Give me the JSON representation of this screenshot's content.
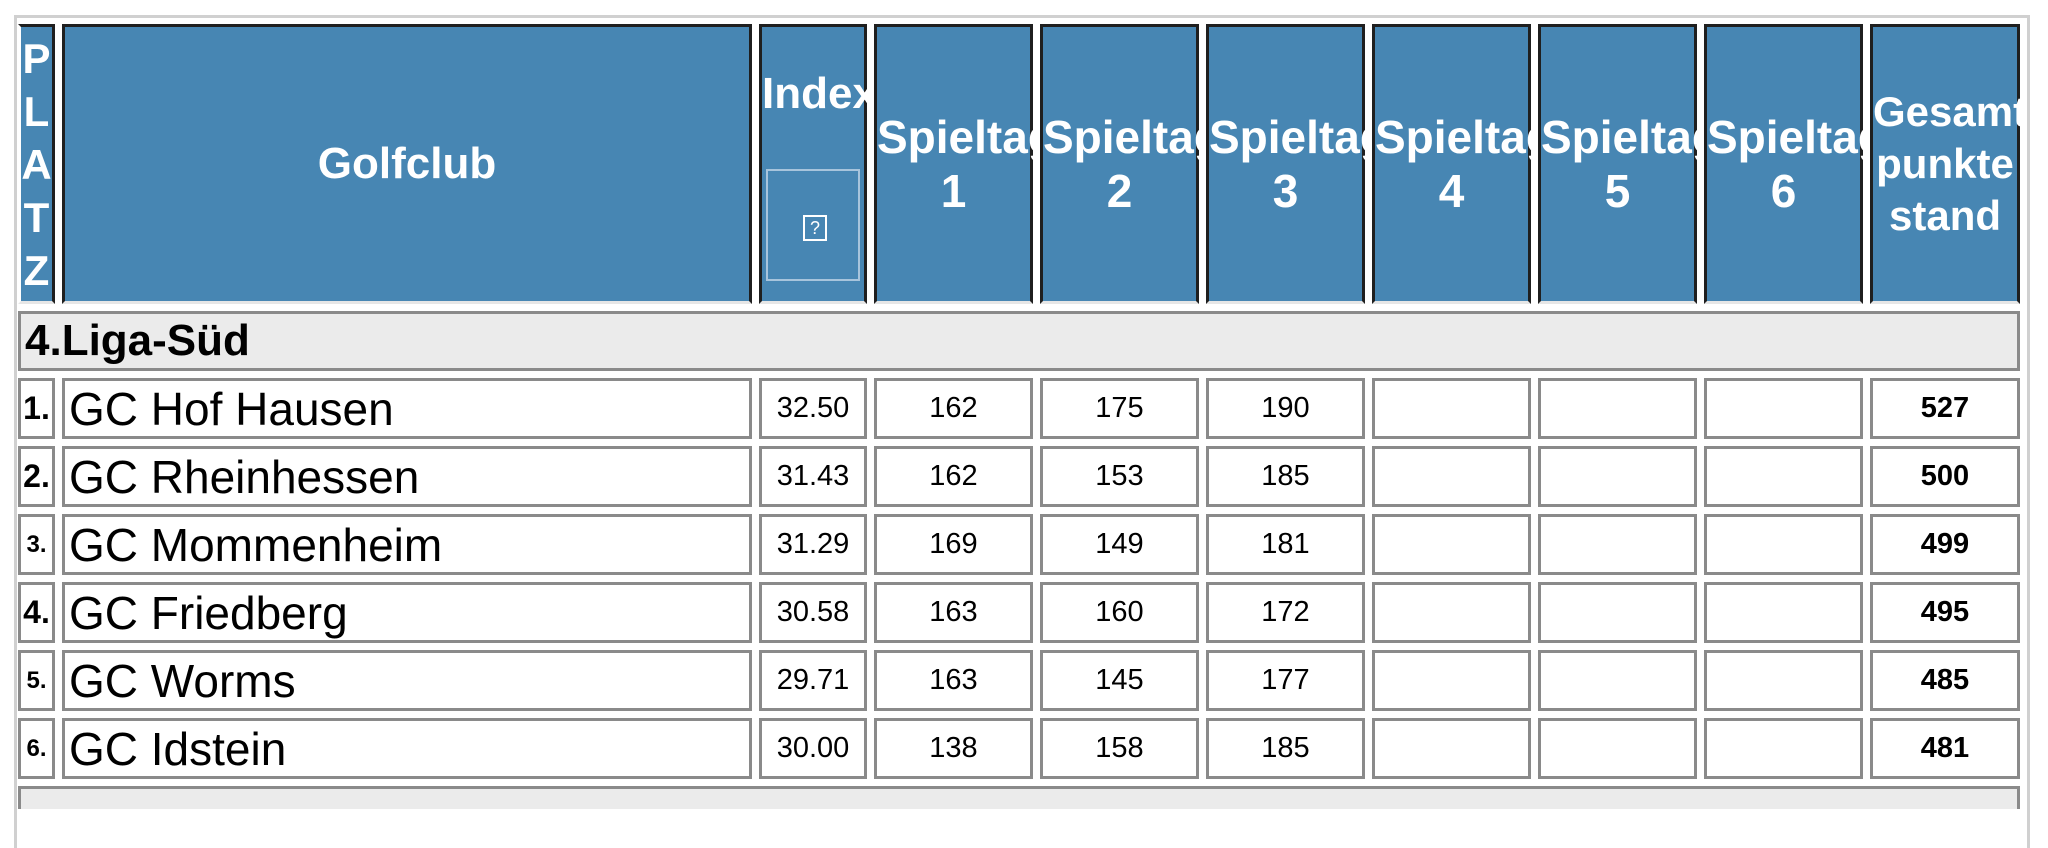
{
  "header": {
    "platz_letters": [
      "P",
      "L",
      "A",
      "T",
      "Z"
    ],
    "golfclub": "Golfclub",
    "index": "Index",
    "index_help": "?",
    "spieltag_label": "Spieltag",
    "spieltag_numbers": [
      "1",
      "2",
      "3",
      "4",
      "5",
      "6"
    ],
    "total_lines": [
      "Gesamt",
      "punkte",
      "stand"
    ]
  },
  "group": {
    "title": "4.Liga-Süd"
  },
  "rows": [
    {
      "rank": "1.",
      "club": "GC Hof Hausen",
      "index": "32.50",
      "days": [
        "162",
        "175",
        "190",
        "",
        "",
        ""
      ],
      "total": "527"
    },
    {
      "rank": "2.",
      "club": "GC Rheinhessen",
      "index": "31.43",
      "days": [
        "162",
        "153",
        "185",
        "",
        "",
        ""
      ],
      "total": "500"
    },
    {
      "rank": "3.",
      "club": "GC Mommenheim",
      "index": "31.29",
      "days": [
        "169",
        "149",
        "181",
        "",
        "",
        ""
      ],
      "total": "499"
    },
    {
      "rank": "4.",
      "club": "GC Friedberg",
      "index": "30.58",
      "days": [
        "163",
        "160",
        "172",
        "",
        "",
        ""
      ],
      "total": "495"
    },
    {
      "rank": "5.",
      "club": "GC Worms",
      "index": "29.71",
      "days": [
        "163",
        "145",
        "177",
        "",
        "",
        ""
      ],
      "total": "485"
    },
    {
      "rank": "6.",
      "club": "GC Idstein",
      "index": "30.00",
      "days": [
        "138",
        "158",
        "185",
        "",
        "",
        ""
      ],
      "total": "481"
    }
  ]
}
